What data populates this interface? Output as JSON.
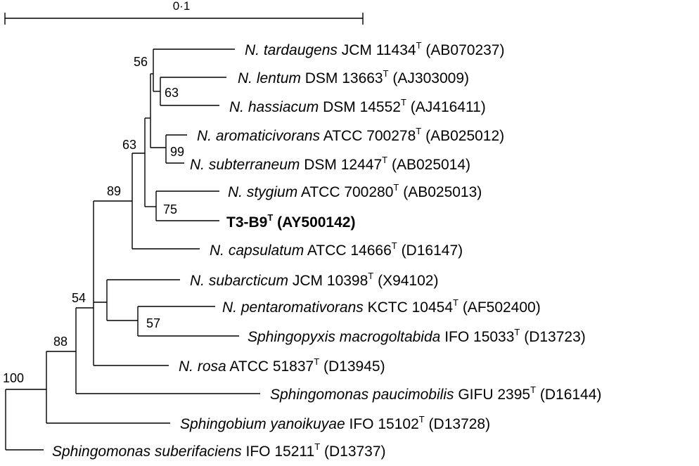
{
  "scale_bar": {
    "label": "0·1"
  },
  "taxa": [
    {
      "id": "tardaugens",
      "species": "N. tardaugens",
      "strain": "JCM 11434",
      "sup": "T",
      "accession": "(AB070237)"
    },
    {
      "id": "lentum",
      "species": "N. lentum",
      "strain": "DSM 13663",
      "sup": "T",
      "accession": "(AJ303009)"
    },
    {
      "id": "hassiacum",
      "species": "N. hassiacum",
      "strain": "DSM 14552",
      "sup": "T",
      "accession": "(AJ416411)"
    },
    {
      "id": "aromaticivorans",
      "species": "N. aromaticivorans",
      "strain": "ATCC 700278",
      "sup": "T",
      "accession": "(AB025012)"
    },
    {
      "id": "subterraneum",
      "species": "N. subterraneum",
      "strain": "DSM 12447",
      "sup": "T",
      "accession": "(AB025014)"
    },
    {
      "id": "stygium",
      "species": "N. stygium",
      "strain": "ATCC 700280",
      "sup": "T",
      "accession": "(AB025013)"
    },
    {
      "id": "t3b9",
      "species": "",
      "strain": "T3-B9",
      "sup": "T",
      "accession": "(AY500142)"
    },
    {
      "id": "capsulatum",
      "species": "N. capsulatum",
      "strain": "ATCC 14666",
      "sup": "T",
      "accession": "(D16147)"
    },
    {
      "id": "subarcticum",
      "species": "N. subarcticum",
      "strain": "JCM 10398",
      "sup": "T",
      "accession": "(X94102)"
    },
    {
      "id": "pentaromativorans",
      "species": "N. pentaromativorans",
      "strain": "KCTC 10454",
      "sup": "T",
      "accession": "(AF502400)"
    },
    {
      "id": "macrogoltabida",
      "species": "Sphingopyxis macrogoltabida",
      "strain": "IFO 15033",
      "sup": "T",
      "accession": "(D13723)"
    },
    {
      "id": "rosa",
      "species": "N. rosa",
      "strain": "ATCC 51837",
      "sup": "T",
      "accession": "(D13945)"
    },
    {
      "id": "paucimobilis",
      "species": "Sphingomonas paucimobilis",
      "strain": "GIFU 2395",
      "sup": "T",
      "accession": "(D16144)"
    },
    {
      "id": "yanoikuyae",
      "species": "Sphingobium yanoikuyae",
      "strain": "IFO 15102",
      "sup": "T",
      "accession": "(D13728)"
    },
    {
      "id": "suberifaciens",
      "species": "Sphingomonas suberifaciens",
      "strain": "IFO 15211",
      "sup": "T",
      "accession": "(D13737)"
    }
  ],
  "bootstrap": {
    "n100": "100",
    "n88": "88",
    "n54": "54",
    "n89": "89",
    "n63a": "63",
    "n56": "56",
    "n63b": "63",
    "n99": "99",
    "n75": "75",
    "n57": "57"
  }
}
